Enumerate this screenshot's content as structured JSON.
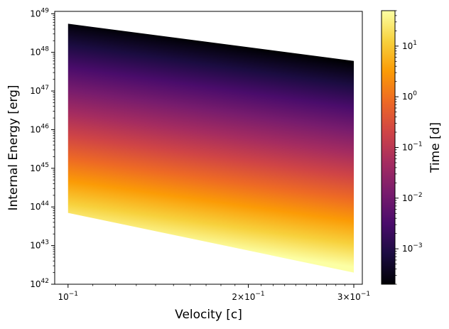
{
  "chart_data": {
    "type": "area",
    "title": "",
    "xlabel": "Velocity [c]",
    "ylabel": "Internal Energy [erg]",
    "xscale": "log",
    "yscale": "log",
    "xlim": [
      0.095,
      0.31
    ],
    "ylim": [
      1e+42,
      1.15e+49
    ],
    "x_ticks": [
      {
        "value": 0.1,
        "base": "10",
        "exp": "−1",
        "coef": ""
      },
      {
        "value": 0.2,
        "base": "10",
        "exp": "−1",
        "coef": "2×"
      },
      {
        "value": 0.3,
        "base": "10",
        "exp": "−1",
        "coef": "3×"
      }
    ],
    "y_ticks": [
      {
        "value": 1e+42,
        "base": "10",
        "exp": "42"
      },
      {
        "value": 1e+43,
        "base": "10",
        "exp": "43"
      },
      {
        "value": 1e+44,
        "base": "10",
        "exp": "44"
      },
      {
        "value": 1e+45,
        "base": "10",
        "exp": "45"
      },
      {
        "value": 1e+46,
        "base": "10",
        "exp": "46"
      },
      {
        "value": 1e+47,
        "base": "10",
        "exp": "47"
      },
      {
        "value": 1e+48,
        "base": "10",
        "exp": "48"
      },
      {
        "value": 1e+49,
        "base": "10",
        "exp": "49"
      }
    ],
    "x": [
      0.1,
      0.3
    ],
    "energy_at_earliest_time": [
      5.5e+48,
      6e+47
    ],
    "energy_at_latest_time": [
      7e+43,
      2e+42
    ],
    "colormap": "inferno",
    "colormap_stops": [
      "#000004",
      "#1b0c41",
      "#4a0c6b",
      "#781c6d",
      "#a52c60",
      "#cf4446",
      "#ed6925",
      "#fb9b06",
      "#f7d13d",
      "#fcffa4"
    ],
    "colorbar": {
      "label": "Time [d]",
      "scale": "log",
      "range": [
        0.0002,
        50
      ],
      "ticks": [
        {
          "value": 0.001,
          "base": "10",
          "exp": "−3"
        },
        {
          "value": 0.01,
          "base": "10",
          "exp": "−2"
        },
        {
          "value": 0.1,
          "base": "10",
          "exp": "−1"
        },
        {
          "value": 1,
          "base": "10",
          "exp": "0"
        },
        {
          "value": 10,
          "base": "10",
          "exp": "1"
        }
      ]
    },
    "grid": false
  }
}
